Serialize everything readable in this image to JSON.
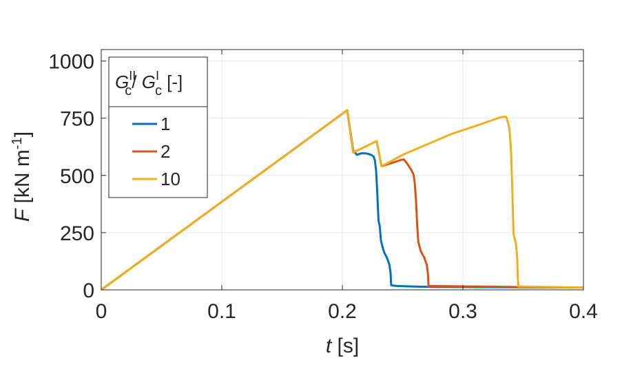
{
  "chart_data": {
    "type": "line",
    "xlabel_var": "t",
    "xlabel_unit": " [s]",
    "ylabel_var": "F",
    "ylabel_unit": " [kN m",
    "ylabel_exp": "-1",
    "ylabel_close": "]",
    "xlim": [
      0,
      0.4
    ],
    "ylim": [
      0,
      1050
    ],
    "x_ticks": [
      0,
      0.1,
      0.2,
      0.3,
      0.4
    ],
    "x_tick_labels": [
      "0",
      "0.1",
      "0.2",
      "0.3",
      "0.4"
    ],
    "y_ticks": [
      0,
      250,
      500,
      750,
      1000
    ],
    "y_tick_labels": [
      "0",
      "250",
      "500",
      "750",
      "1000"
    ],
    "grid": true,
    "legend": {
      "placement": "top-left",
      "title_g": "G",
      "title_sup1": "II",
      "title_sub1": "c",
      "title_slash": "/ ",
      "title_sup2": "I",
      "title_sub2": "c",
      "title_unit": " [-]"
    },
    "series": [
      {
        "name": "1",
        "color": "#0072BD",
        "points": [
          [
            0,
            0
          ],
          [
            0.204,
            785
          ],
          [
            0.209,
            610
          ],
          [
            0.212,
            590
          ],
          [
            0.216,
            597
          ],
          [
            0.22,
            596
          ],
          [
            0.224,
            590
          ],
          [
            0.226,
            582
          ],
          [
            0.227,
            565
          ],
          [
            0.228,
            520
          ],
          [
            0.229,
            420
          ],
          [
            0.23,
            300
          ],
          [
            0.231,
            280
          ],
          [
            0.232,
            215
          ],
          [
            0.234,
            175
          ],
          [
            0.235,
            160
          ],
          [
            0.237,
            140
          ],
          [
            0.239,
            110
          ],
          [
            0.24,
            75
          ],
          [
            0.2405,
            20
          ],
          [
            0.245,
            17
          ],
          [
            0.262,
            14
          ],
          [
            0.272,
            13
          ],
          [
            0.35,
            11
          ],
          [
            0.4,
            10
          ]
        ]
      },
      {
        "name": "2",
        "color": "#D95319",
        "points": [
          [
            0,
            0
          ],
          [
            0.204,
            785
          ],
          [
            0.209,
            600
          ],
          [
            0.2285,
            650
          ],
          [
            0.2325,
            540
          ],
          [
            0.249,
            568
          ],
          [
            0.251,
            570
          ],
          [
            0.254,
            550
          ],
          [
            0.257,
            525
          ],
          [
            0.259,
            505
          ],
          [
            0.26,
            470
          ],
          [
            0.261,
            400
          ],
          [
            0.262,
            290
          ],
          [
            0.263,
            210
          ],
          [
            0.265,
            170
          ],
          [
            0.268,
            140
          ],
          [
            0.27,
            110
          ],
          [
            0.271,
            70
          ],
          [
            0.2715,
            17
          ],
          [
            0.3,
            15
          ],
          [
            0.335,
            13
          ],
          [
            0.346,
            12
          ],
          [
            0.4,
            10
          ]
        ]
      },
      {
        "name": "10",
        "color": "#EDB120",
        "points": [
          [
            0,
            0
          ],
          [
            0.204,
            785
          ],
          [
            0.209,
            600
          ],
          [
            0.2285,
            650
          ],
          [
            0.2325,
            540
          ],
          [
            0.25,
            590
          ],
          [
            0.27,
            635
          ],
          [
            0.29,
            680
          ],
          [
            0.31,
            715
          ],
          [
            0.33,
            752
          ],
          [
            0.334,
            757
          ],
          [
            0.336,
            755
          ],
          [
            0.338,
            720
          ],
          [
            0.339,
            680
          ],
          [
            0.34,
            600
          ],
          [
            0.341,
            430
          ],
          [
            0.342,
            245
          ],
          [
            0.344,
            200
          ],
          [
            0.345,
            145
          ],
          [
            0.3455,
            60
          ],
          [
            0.346,
            15
          ],
          [
            0.35,
            14
          ],
          [
            0.4,
            10
          ]
        ]
      }
    ]
  }
}
